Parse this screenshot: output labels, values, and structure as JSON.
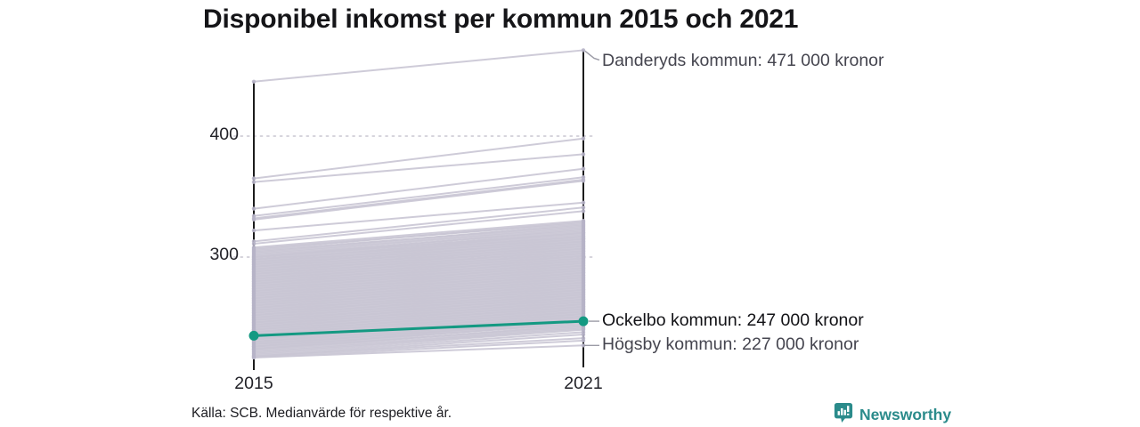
{
  "title": "Disponibel inkomst per kommun 2015 och 2021",
  "source": "Källa: SCB. Medianvärde för respektive år.",
  "brand": {
    "name": "Newsworthy",
    "color": "#2b8b8b",
    "icon": "bar-chart-speech-bubble"
  },
  "axis": {
    "x_labels": [
      "2015",
      "2021"
    ],
    "y_tick_labels": [
      "400",
      "300"
    ]
  },
  "chart_data": {
    "type": "line",
    "subtype": "slope",
    "title": "Disponibel inkomst per kommun 2015 och 2021",
    "x": [
      2015,
      2021
    ],
    "unit": "tusen kronor",
    "yticks": [
      300,
      400
    ],
    "ylim": [
      214,
      475
    ],
    "grid": "dotted-horizontal",
    "colors": {
      "background_line": "#c9c6d4",
      "endpoint_dot": "#b6b3c6",
      "highlight": "#149982",
      "axis": "#1c1c1c",
      "gridline": "#d6d4dc",
      "connector": "#9b9ba6"
    },
    "highlight": {
      "name": "Ockelbo kommun",
      "label": "Ockelbo kommun: 247 000 kronor",
      "values": [
        235,
        247
      ],
      "color": "#149982"
    },
    "labeled_lines": [
      {
        "name": "Danderyds kommun",
        "label": "Danderyds kommun: 471 000 kronor",
        "values": [
          445,
          471
        ]
      },
      {
        "name": "Högsby kommun",
        "label": "Högsby kommun: 227 000 kronor",
        "values": [
          217,
          227
        ]
      }
    ],
    "background_lines": [
      [
        365,
        398
      ],
      [
        362,
        385
      ],
      [
        340,
        373
      ],
      [
        334,
        366
      ],
      [
        332,
        364
      ],
      [
        331,
        363
      ],
      [
        322,
        345
      ],
      [
        313,
        341
      ],
      [
        311,
        338
      ],
      [
        308,
        330
      ],
      [
        307,
        328
      ],
      [
        306,
        329
      ],
      [
        305,
        326
      ],
      [
        304,
        327
      ],
      [
        303,
        325
      ],
      [
        302,
        324
      ],
      [
        301,
        322
      ],
      [
        300,
        323
      ],
      [
        300,
        320
      ],
      [
        299,
        321
      ],
      [
        298,
        319
      ],
      [
        298,
        317
      ],
      [
        297,
        320
      ],
      [
        296,
        318
      ],
      [
        296,
        315
      ],
      [
        295,
        317
      ],
      [
        294,
        316
      ],
      [
        294,
        313
      ],
      [
        293,
        315
      ],
      [
        292,
        314
      ],
      [
        292,
        311
      ],
      [
        291,
        313
      ],
      [
        290,
        312
      ],
      [
        290,
        309
      ],
      [
        289,
        311
      ],
      [
        288,
        310
      ],
      [
        288,
        307
      ],
      [
        287,
        309
      ],
      [
        286,
        308
      ],
      [
        286,
        305
      ],
      [
        285,
        307
      ],
      [
        284,
        306
      ],
      [
        284,
        303
      ],
      [
        283,
        305
      ],
      [
        282,
        304
      ],
      [
        282,
        301
      ],
      [
        281,
        303
      ],
      [
        280,
        302
      ],
      [
        280,
        299
      ],
      [
        279,
        301
      ],
      [
        278,
        300
      ],
      [
        278,
        297
      ],
      [
        277,
        299
      ],
      [
        276,
        298
      ],
      [
        276,
        295
      ],
      [
        275,
        297
      ],
      [
        274,
        296
      ],
      [
        274,
        293
      ],
      [
        273,
        295
      ],
      [
        272,
        294
      ],
      [
        272,
        291
      ],
      [
        271,
        293
      ],
      [
        270,
        292
      ],
      [
        270,
        289
      ],
      [
        269,
        291
      ],
      [
        268,
        290
      ],
      [
        268,
        287
      ],
      [
        267,
        289
      ],
      [
        266,
        288
      ],
      [
        266,
        285
      ],
      [
        265,
        287
      ],
      [
        264,
        286
      ],
      [
        264,
        283
      ],
      [
        263,
        285
      ],
      [
        262,
        284
      ],
      [
        262,
        281
      ],
      [
        261,
        283
      ],
      [
        260,
        282
      ],
      [
        260,
        279
      ],
      [
        259,
        281
      ],
      [
        258,
        280
      ],
      [
        258,
        277
      ],
      [
        257,
        279
      ],
      [
        256,
        278
      ],
      [
        256,
        275
      ],
      [
        255,
        277
      ],
      [
        254,
        276
      ],
      [
        254,
        273
      ],
      [
        253,
        275
      ],
      [
        252,
        274
      ],
      [
        252,
        271
      ],
      [
        251,
        273
      ],
      [
        250,
        272
      ],
      [
        250,
        269
      ],
      [
        249,
        271
      ],
      [
        248,
        270
      ],
      [
        248,
        267
      ],
      [
        247,
        269
      ],
      [
        246,
        268
      ],
      [
        246,
        265
      ],
      [
        245,
        267
      ],
      [
        244,
        266
      ],
      [
        244,
        263
      ],
      [
        243,
        265
      ],
      [
        242,
        264
      ],
      [
        242,
        261
      ],
      [
        241,
        263
      ],
      [
        240,
        262
      ],
      [
        240,
        259
      ],
      [
        239,
        261
      ],
      [
        238,
        260
      ],
      [
        238,
        257
      ],
      [
        237,
        259
      ],
      [
        236,
        258
      ],
      [
        236,
        255
      ],
      [
        235,
        257
      ],
      [
        234,
        256
      ],
      [
        234,
        253
      ],
      [
        233,
        255
      ],
      [
        232,
        254
      ],
      [
        232,
        251
      ],
      [
        231,
        253
      ],
      [
        230,
        252
      ],
      [
        230,
        249
      ],
      [
        229,
        251
      ],
      [
        228,
        250
      ],
      [
        228,
        247
      ],
      [
        227,
        249
      ],
      [
        226,
        248
      ],
      [
        226,
        245
      ],
      [
        225,
        247
      ],
      [
        224,
        246
      ],
      [
        224,
        243
      ],
      [
        223,
        244
      ],
      [
        222,
        242
      ],
      [
        221,
        241
      ],
      [
        220,
        240
      ],
      [
        219,
        238
      ],
      [
        218,
        236
      ],
      [
        218,
        233
      ],
      [
        217,
        231
      ]
    ]
  }
}
